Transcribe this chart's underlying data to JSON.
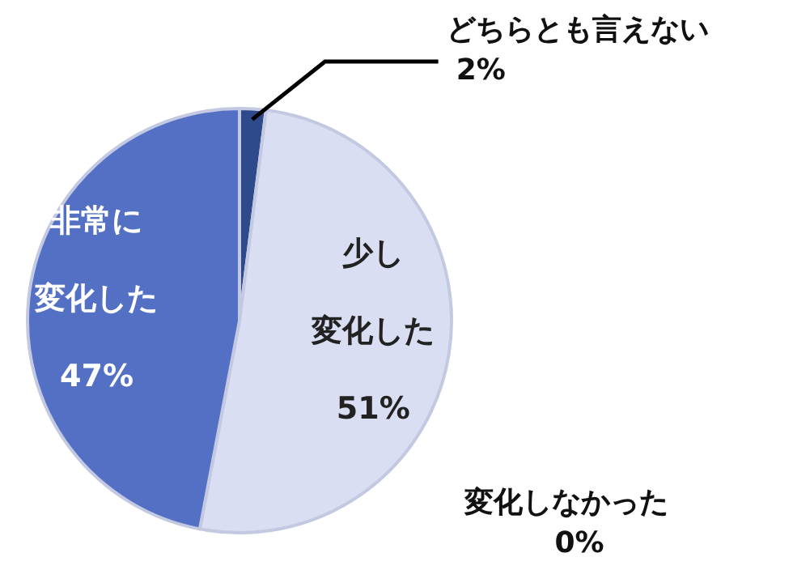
{
  "chart_data": {
    "type": "pie",
    "categories": [
      "どちらとも言えない",
      "少し変化した",
      "変化しなかった",
      "非常に変化した"
    ],
    "values": [
      2,
      51,
      0,
      47
    ],
    "value_labels": [
      "2%",
      "51%",
      "0%",
      "47%"
    ],
    "colors": [
      "#2f4a8a",
      "#dadef2",
      "#b8bedc",
      "#5370c4"
    ]
  }
}
